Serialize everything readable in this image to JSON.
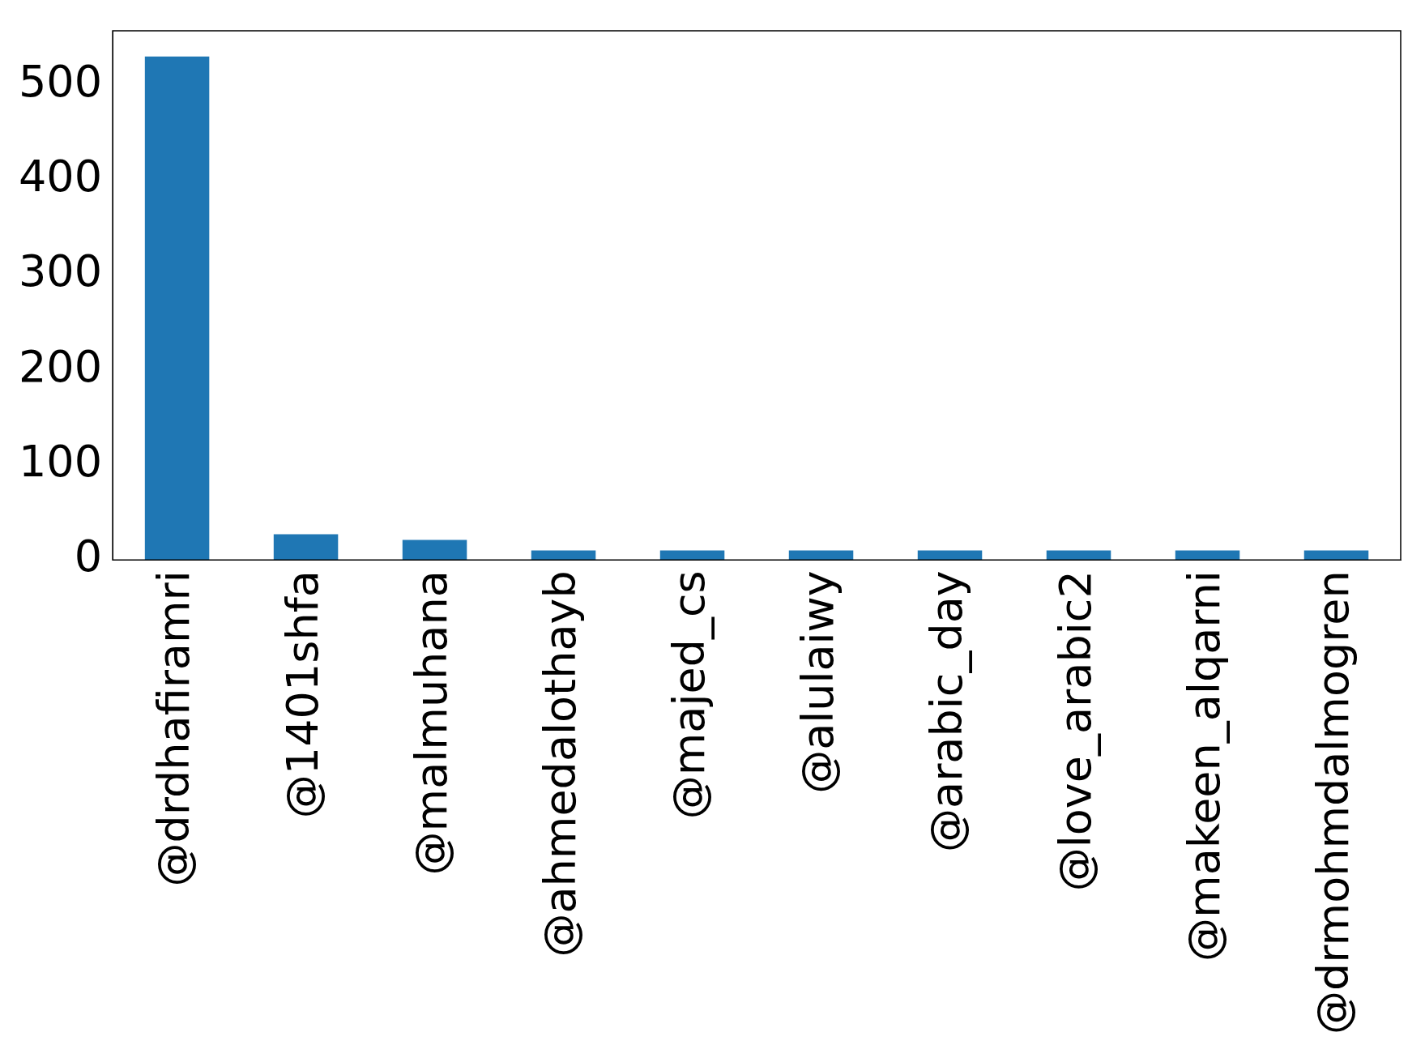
{
  "chart_data": {
    "type": "bar",
    "categories": [
      "@drdhafiramri",
      "@1401shfa",
      "@malmuhana",
      "@ahmedalothayb",
      "@majed_cs",
      "@alulaiwy",
      "@arabic_day",
      "@love_arabic2",
      "@makeen_alqarni",
      "@drmohmdalmogren"
    ],
    "values": [
      530,
      27,
      21,
      10,
      10,
      10,
      10,
      10,
      10,
      10
    ],
    "color": "#1f77b4",
    "ylim": [
      0,
      557
    ],
    "yticks": [
      0,
      100,
      200,
      300,
      400,
      500
    ],
    "grid": false,
    "legend": false
  }
}
